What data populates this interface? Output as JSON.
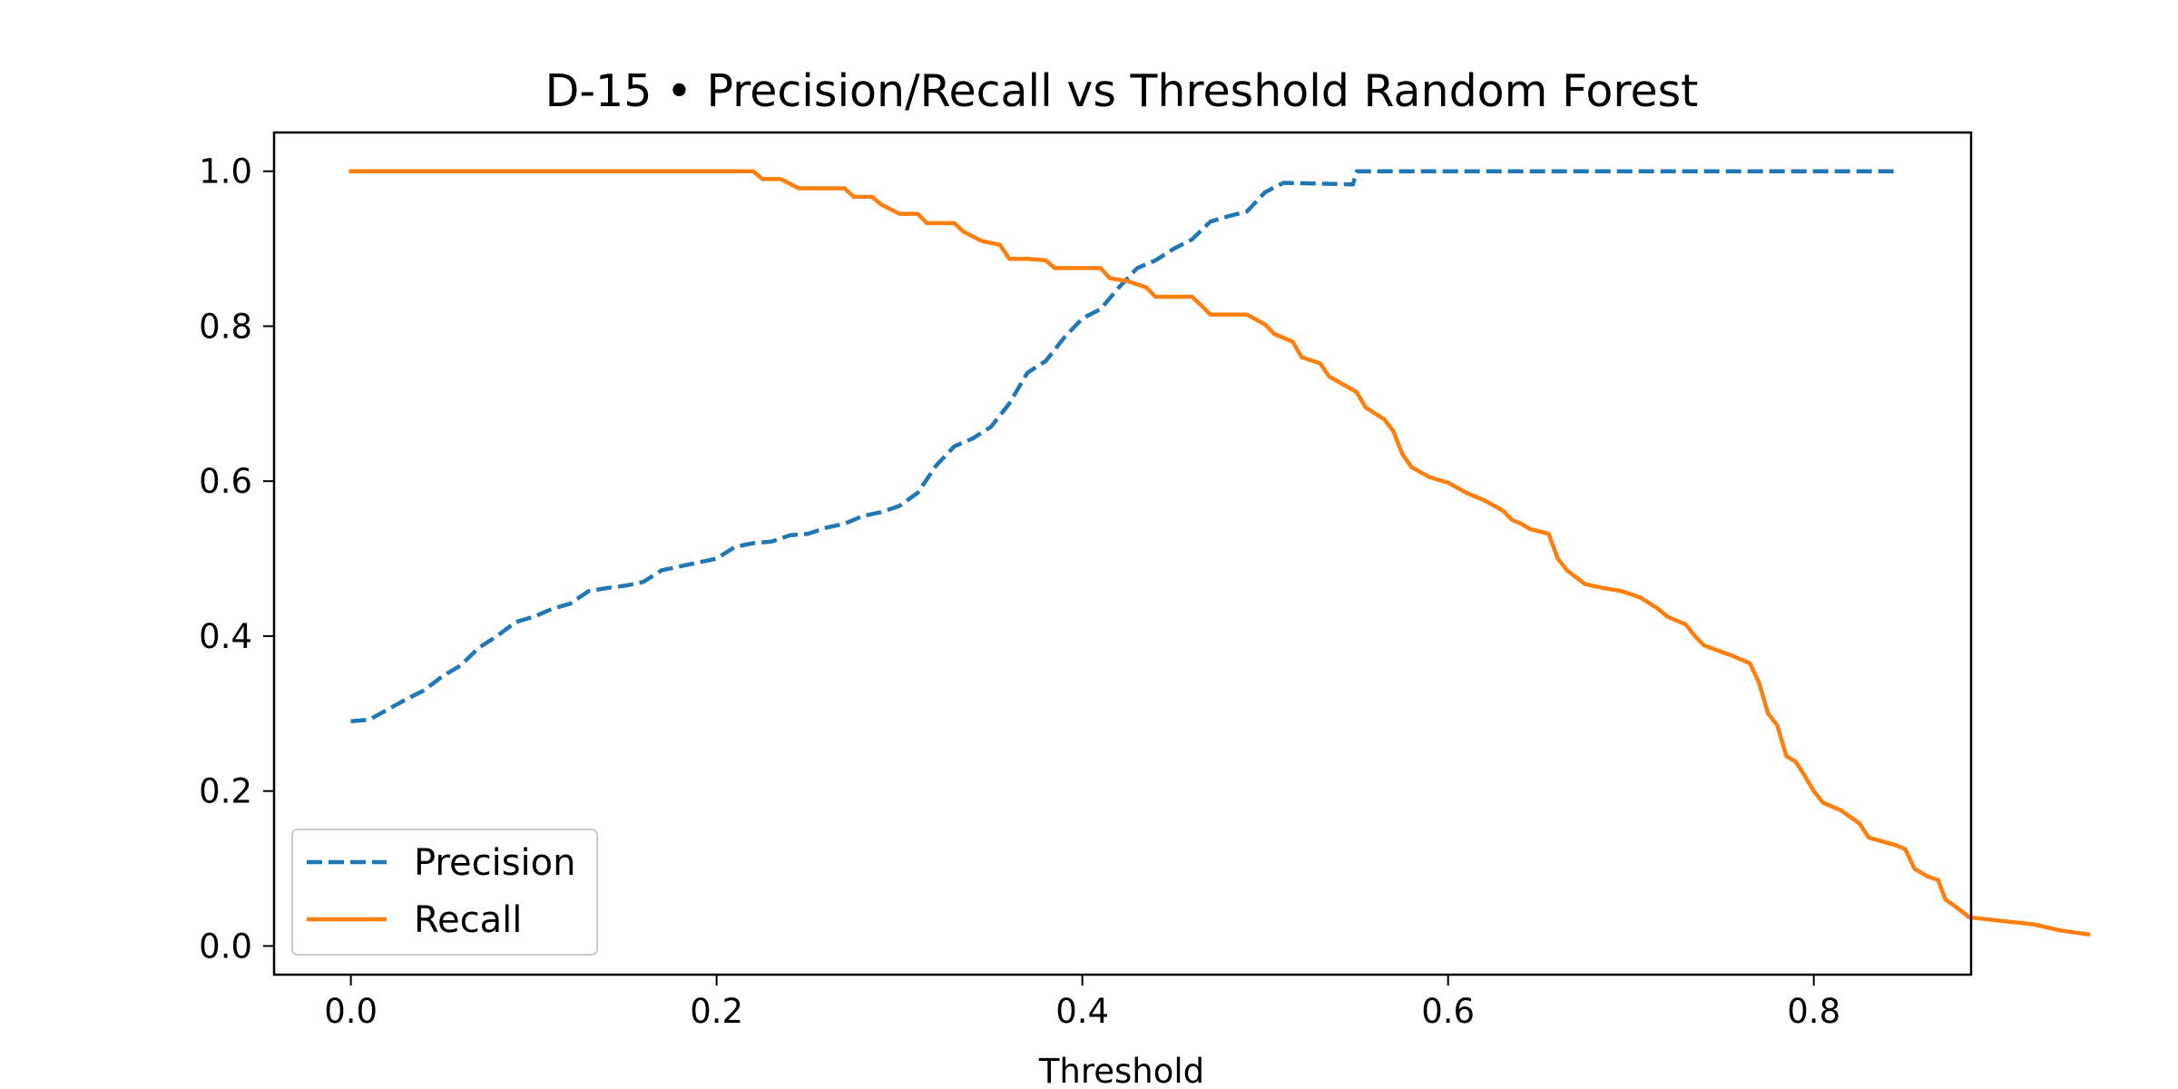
{
  "chart_data": {
    "type": "line",
    "title": "D-15 • Precision/Recall vs Threshold Random Forest",
    "xlabel": "Threshold",
    "ylabel": "",
    "xlim": [
      -0.042,
      0.886
    ],
    "ylim": [
      -0.037,
      1.05
    ],
    "xticks": [
      0.0,
      0.2,
      0.4,
      0.6,
      0.8
    ],
    "xtick_labels": [
      "0.0",
      "0.2",
      "0.4",
      "0.6",
      "0.8"
    ],
    "yticks": [
      0.0,
      0.2,
      0.4,
      0.6,
      0.8,
      1.0
    ],
    "ytick_labels": [
      "0.0",
      "0.2",
      "0.4",
      "0.6",
      "0.8",
      "1.0"
    ],
    "grid": false,
    "legend_position": "lower-left",
    "series": [
      {
        "name": "Precision",
        "color": "#1f77b4",
        "style": "dashed",
        "points": [
          [
            0.0,
            0.29
          ],
          [
            0.01,
            0.292
          ],
          [
            0.02,
            0.305
          ],
          [
            0.03,
            0.318
          ],
          [
            0.04,
            0.33
          ],
          [
            0.05,
            0.348
          ],
          [
            0.06,
            0.362
          ],
          [
            0.07,
            0.385
          ],
          [
            0.08,
            0.4
          ],
          [
            0.09,
            0.418
          ],
          [
            0.1,
            0.425
          ],
          [
            0.11,
            0.435
          ],
          [
            0.12,
            0.442
          ],
          [
            0.13,
            0.458
          ],
          [
            0.14,
            0.462
          ],
          [
            0.15,
            0.465
          ],
          [
            0.16,
            0.47
          ],
          [
            0.17,
            0.485
          ],
          [
            0.18,
            0.49
          ],
          [
            0.19,
            0.495
          ],
          [
            0.2,
            0.5
          ],
          [
            0.21,
            0.515
          ],
          [
            0.22,
            0.52
          ],
          [
            0.23,
            0.522
          ],
          [
            0.24,
            0.53
          ],
          [
            0.25,
            0.532
          ],
          [
            0.26,
            0.54
          ],
          [
            0.27,
            0.545
          ],
          [
            0.28,
            0.555
          ],
          [
            0.29,
            0.56
          ],
          [
            0.3,
            0.568
          ],
          [
            0.31,
            0.585
          ],
          [
            0.32,
            0.62
          ],
          [
            0.33,
            0.645
          ],
          [
            0.34,
            0.655
          ],
          [
            0.35,
            0.67
          ],
          [
            0.36,
            0.7
          ],
          [
            0.37,
            0.74
          ],
          [
            0.38,
            0.755
          ],
          [
            0.39,
            0.785
          ],
          [
            0.4,
            0.81
          ],
          [
            0.41,
            0.822
          ],
          [
            0.42,
            0.85
          ],
          [
            0.43,
            0.875
          ],
          [
            0.44,
            0.885
          ],
          [
            0.45,
            0.9
          ],
          [
            0.46,
            0.912
          ],
          [
            0.47,
            0.935
          ],
          [
            0.48,
            0.942
          ],
          [
            0.49,
            0.948
          ],
          [
            0.5,
            0.973
          ],
          [
            0.51,
            0.985
          ],
          [
            0.53,
            0.984
          ],
          [
            0.548,
            0.983
          ],
          [
            0.55,
            1.0
          ],
          [
            0.6,
            1.0
          ],
          [
            0.7,
            1.0
          ],
          [
            0.8,
            1.0
          ],
          [
            0.845,
            1.0
          ]
        ]
      },
      {
        "name": "Recall",
        "color": "#ff7f0e",
        "style": "solid",
        "points": [
          [
            0.0,
            1.0
          ],
          [
            0.1,
            1.0
          ],
          [
            0.2,
            1.0
          ],
          [
            0.22,
            1.0
          ],
          [
            0.225,
            0.99
          ],
          [
            0.235,
            0.99
          ],
          [
            0.245,
            0.978
          ],
          [
            0.27,
            0.978
          ],
          [
            0.275,
            0.967
          ],
          [
            0.285,
            0.967
          ],
          [
            0.29,
            0.957
          ],
          [
            0.3,
            0.945
          ],
          [
            0.31,
            0.945
          ],
          [
            0.315,
            0.933
          ],
          [
            0.33,
            0.933
          ],
          [
            0.335,
            0.922
          ],
          [
            0.345,
            0.91
          ],
          [
            0.355,
            0.905
          ],
          [
            0.36,
            0.887
          ],
          [
            0.37,
            0.887
          ],
          [
            0.38,
            0.885
          ],
          [
            0.385,
            0.875
          ],
          [
            0.41,
            0.875
          ],
          [
            0.415,
            0.862
          ],
          [
            0.425,
            0.858
          ],
          [
            0.435,
            0.85
          ],
          [
            0.44,
            0.838
          ],
          [
            0.46,
            0.838
          ],
          [
            0.465,
            0.827
          ],
          [
            0.47,
            0.815
          ],
          [
            0.49,
            0.815
          ],
          [
            0.5,
            0.802
          ],
          [
            0.505,
            0.79
          ],
          [
            0.515,
            0.78
          ],
          [
            0.52,
            0.76
          ],
          [
            0.53,
            0.752
          ],
          [
            0.535,
            0.735
          ],
          [
            0.55,
            0.715
          ],
          [
            0.555,
            0.695
          ],
          [
            0.565,
            0.68
          ],
          [
            0.57,
            0.665
          ],
          [
            0.575,
            0.635
          ],
          [
            0.58,
            0.618
          ],
          [
            0.59,
            0.605
          ],
          [
            0.6,
            0.598
          ],
          [
            0.61,
            0.585
          ],
          [
            0.62,
            0.575
          ],
          [
            0.63,
            0.562
          ],
          [
            0.635,
            0.55
          ],
          [
            0.64,
            0.545
          ],
          [
            0.645,
            0.538
          ],
          [
            0.655,
            0.532
          ],
          [
            0.66,
            0.5
          ],
          [
            0.665,
            0.485
          ],
          [
            0.675,
            0.467
          ],
          [
            0.685,
            0.462
          ],
          [
            0.695,
            0.458
          ],
          [
            0.705,
            0.45
          ],
          [
            0.715,
            0.435
          ],
          [
            0.72,
            0.425
          ],
          [
            0.73,
            0.415
          ],
          [
            0.735,
            0.4
          ],
          [
            0.74,
            0.388
          ],
          [
            0.755,
            0.375
          ],
          [
            0.765,
            0.365
          ],
          [
            0.77,
            0.34
          ],
          [
            0.775,
            0.3
          ],
          [
            0.78,
            0.285
          ],
          [
            0.785,
            0.245
          ],
          [
            0.79,
            0.238
          ],
          [
            0.795,
            0.22
          ],
          [
            0.8,
            0.2
          ],
          [
            0.805,
            0.185
          ],
          [
            0.815,
            0.175
          ],
          [
            0.825,
            0.158
          ],
          [
            0.83,
            0.14
          ],
          [
            0.845,
            0.13
          ],
          [
            0.85,
            0.125
          ],
          [
            0.855,
            0.1
          ],
          [
            0.862,
            0.09
          ],
          [
            0.868,
            0.085
          ],
          [
            0.872,
            0.06
          ],
          [
            0.878,
            0.05
          ],
          [
            0.885,
            0.037
          ],
          [
            0.9,
            0.033
          ],
          [
            0.92,
            0.028
          ],
          [
            0.935,
            0.02
          ],
          [
            0.95,
            0.015
          ]
        ]
      }
    ]
  }
}
